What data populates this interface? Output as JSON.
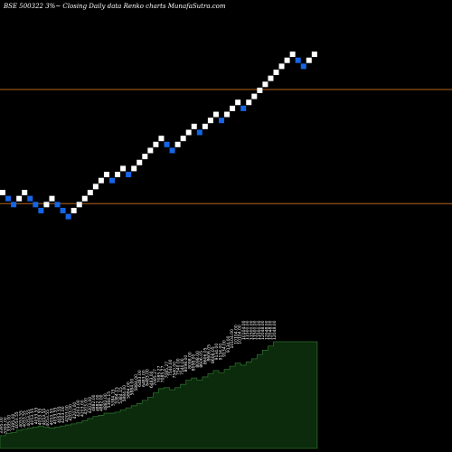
{
  "chart_data": {
    "type": "renko",
    "title": "BSE 500322  3%~  Closing Daily data  Renko  charts MunafaSutra.com",
    "colors": {
      "background": "#000000",
      "up_brick": "#ffffff",
      "down_brick": "#1565e6",
      "reference_line": "#b5651d",
      "volume_fill": "#0c2a0c",
      "volume_outline": "#2a6a2a"
    },
    "bricks": [
      {
        "dir": "up",
        "level": 0
      },
      {
        "dir": "down",
        "level": -1
      },
      {
        "dir": "down",
        "level": -2
      },
      {
        "dir": "up",
        "level": -1
      },
      {
        "dir": "up",
        "level": 0
      },
      {
        "dir": "down",
        "level": -1
      },
      {
        "dir": "down",
        "level": -2
      },
      {
        "dir": "down",
        "level": -3
      },
      {
        "dir": "up",
        "level": -2
      },
      {
        "dir": "up",
        "level": -1
      },
      {
        "dir": "down",
        "level": -2
      },
      {
        "dir": "down",
        "level": -3
      },
      {
        "dir": "down",
        "level": -4
      },
      {
        "dir": "up",
        "level": -3
      },
      {
        "dir": "up",
        "level": -2
      },
      {
        "dir": "up",
        "level": -1
      },
      {
        "dir": "up",
        "level": 0
      },
      {
        "dir": "up",
        "level": 1
      },
      {
        "dir": "up",
        "level": 2
      },
      {
        "dir": "up",
        "level": 3
      },
      {
        "dir": "down",
        "level": 2
      },
      {
        "dir": "up",
        "level": 3
      },
      {
        "dir": "up",
        "level": 4
      },
      {
        "dir": "down",
        "level": 3
      },
      {
        "dir": "up",
        "level": 4
      },
      {
        "dir": "up",
        "level": 5
      },
      {
        "dir": "up",
        "level": 6
      },
      {
        "dir": "up",
        "level": 7
      },
      {
        "dir": "up",
        "level": 8
      },
      {
        "dir": "up",
        "level": 9
      },
      {
        "dir": "down",
        "level": 8
      },
      {
        "dir": "down",
        "level": 7
      },
      {
        "dir": "up",
        "level": 8
      },
      {
        "dir": "up",
        "level": 9
      },
      {
        "dir": "up",
        "level": 10
      },
      {
        "dir": "up",
        "level": 11
      },
      {
        "dir": "down",
        "level": 10
      },
      {
        "dir": "up",
        "level": 11
      },
      {
        "dir": "up",
        "level": 12
      },
      {
        "dir": "up",
        "level": 13
      },
      {
        "dir": "down",
        "level": 12
      },
      {
        "dir": "up",
        "level": 13
      },
      {
        "dir": "up",
        "level": 14
      },
      {
        "dir": "up",
        "level": 15
      },
      {
        "dir": "down",
        "level": 14
      },
      {
        "dir": "up",
        "level": 15
      },
      {
        "dir": "up",
        "level": 16
      },
      {
        "dir": "up",
        "level": 17
      },
      {
        "dir": "up",
        "level": 18
      },
      {
        "dir": "up",
        "level": 19
      },
      {
        "dir": "up",
        "level": 20
      },
      {
        "dir": "up",
        "level": 21
      },
      {
        "dir": "up",
        "level": 22
      },
      {
        "dir": "up",
        "level": 23
      },
      {
        "dir": "down",
        "level": 22
      },
      {
        "dir": "down",
        "level": 21
      },
      {
        "dir": "up",
        "level": 22
      },
      {
        "dir": "up",
        "level": 23
      }
    ],
    "reference_levels": [
      17,
      -2
    ],
    "volume_labels": [
      "3395.00",
      "3395.00",
      "3395.00",
      "3395.00",
      "4053.55",
      "4053.55",
      "4053.55",
      "4053.55",
      "4053.55",
      "4053.55",
      "4053.55",
      "4053.55",
      "4053.55",
      "4053.55",
      "4053.55",
      "4053.55",
      "4203.00",
      "4203.00",
      "4203.00",
      "4203.00",
      "4203.00",
      "4203.00",
      "4203.00",
      "4203.00",
      "4882.00",
      "4882.00",
      "4882.00",
      "4882.00",
      "5384.15",
      "5384.15",
      "5384.15",
      "5384.15",
      "5884.00",
      "5884.00",
      "5884.00",
      "5884.00",
      "6483.00",
      "6483.00",
      "6483.00",
      "6483.00",
      "7085.27",
      "7085.27",
      "7085.27",
      "7085.27",
      "7540.00",
      "7540.00",
      "7540.00",
      "7540.00",
      "8098.00",
      "8098.00",
      "8098.00",
      "8098.00",
      "8606.05",
      "8606.05",
      "8606.05",
      "8606.05",
      "9134.00",
      "9134.00",
      "9134.00",
      "9134.00",
      "10104.00",
      "10104.00",
      "10104.00",
      "10104.00",
      "11500.00",
      "11500.00",
      "11500.00",
      "11500.00",
      "12048.00",
      "12048.00",
      "12048.00",
      "12048.00"
    ],
    "volume_heights": [
      0.12,
      0.14,
      0.15,
      0.17,
      0.18,
      0.19,
      0.2,
      0.21,
      0.2,
      0.19,
      0.2,
      0.21,
      0.22,
      0.23,
      0.24,
      0.26,
      0.28,
      0.3,
      0.31,
      0.33,
      0.33,
      0.34,
      0.36,
      0.38,
      0.4,
      0.42,
      0.45,
      0.48,
      0.52,
      0.56,
      0.57,
      0.55,
      0.57,
      0.6,
      0.64,
      0.66,
      0.64,
      0.67,
      0.7,
      0.73,
      0.71,
      0.74,
      0.77,
      0.8,
      0.78,
      0.81,
      0.84,
      0.88,
      0.92,
      0.96,
      1.0,
      1.0,
      1.0,
      1.0,
      1.0,
      1.0,
      1.0,
      1.0
    ]
  }
}
